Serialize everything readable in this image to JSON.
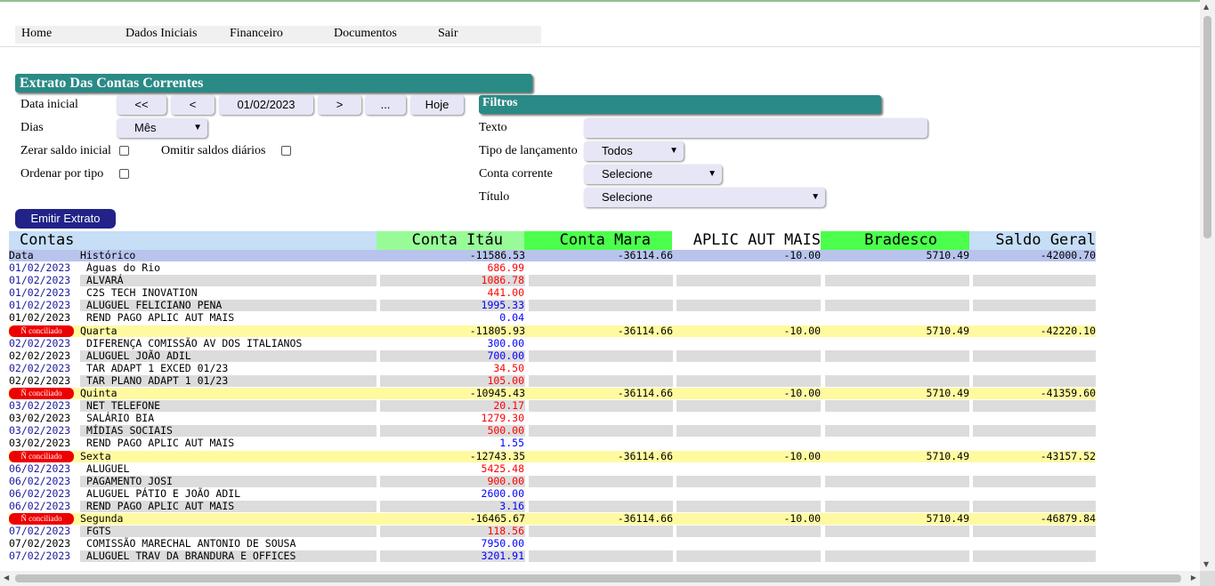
{
  "menu": [
    "Home",
    "Dados Iniciais",
    "Financeiro",
    "Documentos",
    "Sair"
  ],
  "title": "Extrato Das Contas Correntes",
  "form": {
    "data_inicial_label": "Data inicial",
    "btn_first": "<<",
    "btn_prev": "<",
    "date": "01/02/2023",
    "btn_next": ">",
    "btn_more": "...",
    "btn_today": "Hoje",
    "dias_label": "Dias",
    "dias_value": "Mês",
    "zerar_label": "Zerar saldo inicial",
    "omitir_label": "Omitir saldos diários",
    "ordenar_label": "Ordenar por tipo",
    "emit_label": "Emitir Extrato"
  },
  "filters": {
    "title": "Filtros",
    "texto_label": "Texto",
    "texto_value": "",
    "tipo_label": "Tipo de lançamento",
    "tipo_value": "Todos",
    "conta_label": "Conta corrente",
    "conta_value": "Selecione",
    "titulo_label": "Título",
    "titulo_value": "Selecione"
  },
  "table": {
    "headers": [
      "Contas",
      "Conta Itáu",
      "Conta Mara",
      "APLIC AUT MAIS",
      "Bradesco",
      "Saldo Geral"
    ],
    "subheader": {
      "data": "Data",
      "historico": "Histórico",
      "values": [
        "-11586.53",
        "-36114.66",
        "-10.00",
        "5710.49",
        "-42000.70"
      ]
    },
    "badge_label": "Ñ conciliado",
    "rows": [
      {
        "t": "e",
        "date": "01/02/2023",
        "desc": "Águas do Rio",
        "amt": "686.99",
        "neg": true,
        "dblue": true
      },
      {
        "t": "e",
        "date": "01/02/2023",
        "desc": "ALVARÁ",
        "amt": "1086.78",
        "neg": true,
        "dblue": true
      },
      {
        "t": "e",
        "date": "01/02/2023",
        "desc": "C2S TECH INOVATION",
        "amt": "441.00",
        "neg": true,
        "dblue": true
      },
      {
        "t": "e",
        "date": "01/02/2023",
        "desc": "ALUGUEL FELICIANO PENA",
        "amt": "1995.33",
        "neg": false,
        "dblue": true
      },
      {
        "t": "e",
        "date": "01/02/2023",
        "desc": "REND PAGO APLIC AUT MAIS",
        "amt": "0.04",
        "neg": false,
        "dblue": false
      },
      {
        "t": "s",
        "day": "Quarta",
        "vals": [
          "-11805.93",
          "-36114.66",
          "-10.00",
          "5710.49",
          "-42220.10"
        ]
      },
      {
        "t": "e",
        "date": "02/02/2023",
        "desc": "DIFERENÇA COMISSÃO AV DOS ITALIANOS",
        "amt": "300.00",
        "neg": false,
        "dblue": true
      },
      {
        "t": "e",
        "date": "02/02/2023",
        "desc": "ALUGUEL JOÃO ADIL",
        "amt": "700.00",
        "neg": false,
        "dblue": false
      },
      {
        "t": "e",
        "date": "02/02/2023",
        "desc": "TAR ADAPT 1 EXCED 01/23",
        "amt": "34.50",
        "neg": true,
        "dblue": true
      },
      {
        "t": "e",
        "date": "02/02/2023",
        "desc": "TAR PLANO ADAPT 1 01/23",
        "amt": "105.00",
        "neg": true,
        "dblue": false
      },
      {
        "t": "s",
        "day": "Quinta",
        "vals": [
          "-10945.43",
          "-36114.66",
          "-10.00",
          "5710.49",
          "-41359.60"
        ]
      },
      {
        "t": "e",
        "date": "03/02/2023",
        "desc": "NET TELEFONE",
        "amt": "20.17",
        "neg": true,
        "dblue": true
      },
      {
        "t": "e",
        "date": "03/02/2023",
        "desc": "SALÁRIO BIA",
        "amt": "1279.30",
        "neg": true,
        "dblue": false
      },
      {
        "t": "e",
        "date": "03/02/2023",
        "desc": "MÍDIAS SOCIAIS",
        "amt": "500.00",
        "neg": true,
        "dblue": true
      },
      {
        "t": "e",
        "date": "03/02/2023",
        "desc": "REND PAGO APLIC AUT MAIS",
        "amt": "1.55",
        "neg": false,
        "dblue": false
      },
      {
        "t": "s",
        "day": "Sexta",
        "vals": [
          "-12743.35",
          "-36114.66",
          "-10.00",
          "5710.49",
          "-43157.52"
        ]
      },
      {
        "t": "e",
        "date": "06/02/2023",
        "desc": "ALUGUEL",
        "amt": "5425.48",
        "neg": true,
        "dblue": true
      },
      {
        "t": "e",
        "date": "06/02/2023",
        "desc": "PAGAMENTO JOSI",
        "amt": "900.00",
        "neg": true,
        "dblue": true
      },
      {
        "t": "e",
        "date": "06/02/2023",
        "desc": "ALUGUEL PÁTIO E JOÃO ADIL",
        "amt": "2600.00",
        "neg": false,
        "dblue": true
      },
      {
        "t": "e",
        "date": "06/02/2023",
        "desc": "REND PAGO APLIC AUT MAIS",
        "amt": "3.16",
        "neg": false,
        "dblue": true
      },
      {
        "t": "s",
        "day": "Segunda",
        "vals": [
          "-16465.67",
          "-36114.66",
          "-10.00",
          "5710.49",
          "-46879.84"
        ]
      },
      {
        "t": "e",
        "date": "07/02/2023",
        "desc": "FGTS",
        "amt": "118.56",
        "neg": true,
        "dblue": true
      },
      {
        "t": "e",
        "date": "07/02/2023",
        "desc": "COMISSÃO MARECHAL ANTONIO DE SOUSA",
        "amt": "7950.00",
        "neg": false,
        "dblue": false
      },
      {
        "t": "e",
        "date": "07/02/2023",
        "desc": "ALUGUEL TRAV DA BRANDURA E OFFICES",
        "amt": "3201.91",
        "neg": false,
        "dblue": true
      }
    ]
  },
  "colors": {
    "accent": "#2a8a86",
    "emit": "#222288",
    "itau_header": "#98fb98",
    "green_header": "#4cff4c",
    "saldo_header": "#c6def6",
    "subheader": "#b8c4ec",
    "summary": "#fffaa0",
    "neg": "#ff0000",
    "pos": "#0000ff",
    "date_blue": "#1a1aa0",
    "badge": "#ee0000"
  }
}
